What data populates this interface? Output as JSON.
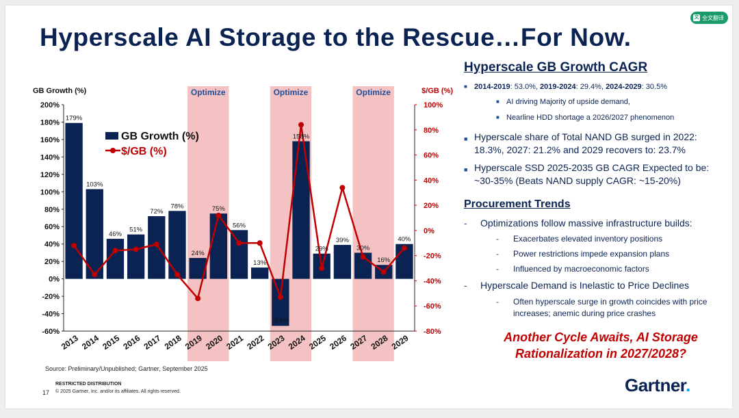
{
  "title": "Hyperscale AI Storage to the Rescue…For Now.",
  "translate_button": "全文翻译",
  "chart_data": {
    "type": "bar",
    "categories": [
      "2013",
      "2014",
      "2015",
      "2016",
      "2017",
      "2018",
      "2019",
      "2020",
      "2021",
      "2022",
      "2023",
      "2024",
      "2025",
      "2026",
      "2027",
      "2028",
      "2029"
    ],
    "series": [
      {
        "name": "GB Growth (%)",
        "type": "bar",
        "axis": "left",
        "color": "#0b2353",
        "values": [
          179,
          103,
          46,
          51,
          72,
          78,
          24,
          75,
          56,
          13,
          -54,
          158,
          29,
          39,
          30,
          16,
          40
        ],
        "labels": [
          "179%",
          "103%",
          "46%",
          "51%",
          "72%",
          "78%",
          "24%",
          "75%",
          "56%",
          "13%",
          "-54%",
          "158%",
          "29%",
          "39%",
          "30%",
          "16%",
          "40%"
        ]
      },
      {
        "name": "$/GB (%)",
        "type": "line",
        "axis": "right",
        "color": "#c00000",
        "values": [
          -12,
          -35,
          -16,
          -15,
          -11,
          -35,
          -54,
          12,
          -10,
          -10,
          -53,
          84,
          -30,
          34,
          -21,
          -33,
          -14
        ]
      }
    ],
    "ylabel_left": "GB Growth (%)",
    "ylabel_right": "$/GB (%)",
    "ylim_left": [
      -60,
      200
    ],
    "ylim_right": [
      -80,
      100
    ],
    "yticks_left": [
      "-60%",
      "-40%",
      "-20%",
      "0%",
      "20%",
      "40%",
      "60%",
      "80%",
      "100%",
      "120%",
      "140%",
      "160%",
      "180%",
      "200%"
    ],
    "yticks_right": [
      "-80%",
      "-60%",
      "-40%",
      "-20%",
      "0%",
      "20%",
      "40%",
      "60%",
      "80%",
      "100%"
    ],
    "legend": [
      "GB Growth (%)",
      "$/GB (%)"
    ],
    "legend_position": "top-left",
    "annotations": [
      {
        "text": "Optimize",
        "from": "2019",
        "to": "2020"
      },
      {
        "text": "Optimize",
        "from": "2023",
        "to": "2024"
      },
      {
        "text": "Optimize",
        "from": "2027",
        "to": "2028"
      }
    ]
  },
  "right_panel": {
    "cagr_heading": "Hyperscale GB Growth CAGR",
    "cagr_line": [
      {
        "bold": "2014-2019",
        "text": ": 53.0%, "
      },
      {
        "bold": "2019-2024",
        "text": ": 29.4%, "
      },
      {
        "bold": "2024-2029",
        "text": ": 30.5%"
      }
    ],
    "cagr_sub": [
      "AI driving Majority of upside demand,",
      "Nearline HDD shortage a 2026/2027 phenomenon"
    ],
    "share_bullet": "Hyperscale share of Total NAND GB surged in 2022: 18.3%, 2027: 21.2% and 2029 recovers to: 23.7%",
    "ssd_bullet": "Hyperscale SSD 2025-2035 GB CAGR Expected to be: ~30-35% (Beats NAND supply CAGR: ~15-20%)",
    "procurement_heading": "Procurement Trends",
    "procurement_bullet": "Optimizations follow massive infrastructure builds:",
    "procurement_sub": [
      "Exacerbates elevated inventory positions",
      "Power restrictions impede expansion plans",
      "Influenced by macroeconomic factors"
    ],
    "inelastic_bullet": "Hyperscale Demand is Inelastic to Price Declines",
    "inelastic_sub": "Often hyperscale surge in growth coincides with price increases; anemic during price crashes"
  },
  "cycle_text": "Another Cycle Awaits, AI Storage Rationalization in 2027/2028?",
  "source": "Source: Preliminary/Unpublished;  Gartner, September 2025",
  "footer": {
    "page": "17",
    "restricted": "RESTRICTED DISTRIBUTION",
    "copyright": "© 2025 Gartner, Inc. and/or its affiliates. All rights reserved."
  },
  "logo": {
    "text": "Gartner",
    "dot": "."
  },
  "colors": {
    "navy": "#0b2353",
    "red": "#c00000",
    "shade": "#f4c2c2",
    "accent": "#00a3e0"
  }
}
